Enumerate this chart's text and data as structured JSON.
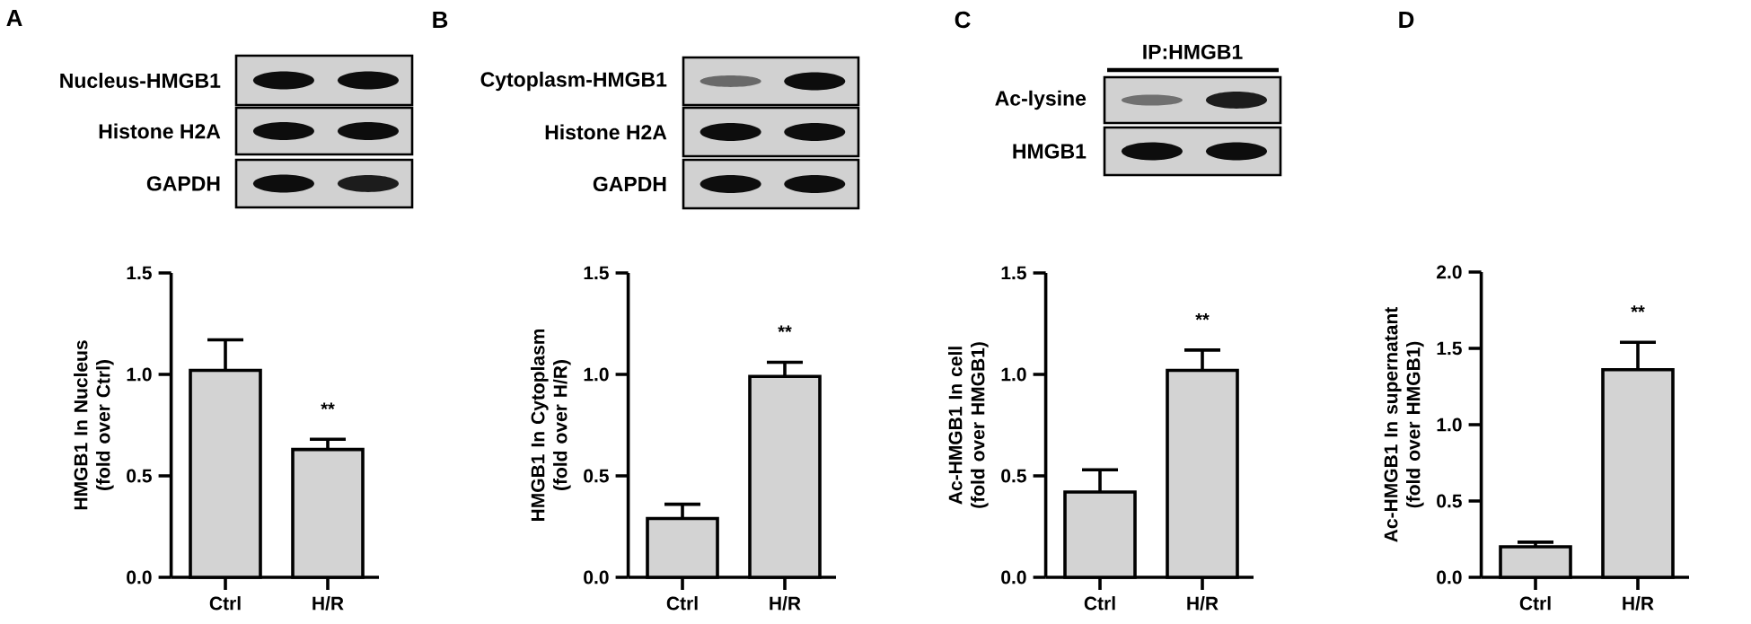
{
  "chart_data": [
    {
      "type": "bar",
      "title": "A",
      "ylabel": "HMGB1 In Nucleus (fold over  Ctrl)",
      "categories": [
        "Ctrl",
        "H/R"
      ],
      "values": [
        1.02,
        0.63
      ],
      "errors": [
        0.15,
        0.05
      ],
      "color": "#d3d3d3",
      "ylim": [
        0,
        1.5
      ],
      "yticks": [
        {
          "value": 0,
          "label": "0.0"
        },
        {
          "value": 0.5,
          "label": "0.5"
        },
        {
          "value": 1,
          "label": "1.0"
        },
        {
          "value": 1.5,
          "label": "1.5"
        }
      ],
      "annotations": [
        "**",
        "Nucleus-HMGB1",
        "Histone H2A",
        "GAPDH"
      ]
    },
    {
      "type": "bar",
      "title": "B",
      "ylabel": "HMGB1 In Cytoplasm (fold over  H/R)",
      "categories": [
        "Ctrl",
        "H/R"
      ],
      "values": [
        0.29,
        0.99
      ],
      "errors": [
        0.07,
        0.07
      ],
      "color": "#d3d3d3",
      "ylim": [
        0,
        1.5
      ],
      "yticks": [
        {
          "value": 0,
          "label": "0.0"
        },
        {
          "value": 0.5,
          "label": "0.5"
        },
        {
          "value": 1,
          "label": "1.0"
        },
        {
          "value": 1.5,
          "label": "1.5"
        }
      ],
      "annotations": [
        "**",
        "Cytoplasm-HMGB1",
        "Histone H2A",
        "GAPDH"
      ]
    },
    {
      "type": "bar",
      "title": "C",
      "ylabel": "Ac-HMGB1 In cell (fold over HMGB1)",
      "categories": [
        "Ctrl",
        "H/R"
      ],
      "values": [
        0.42,
        1.02
      ],
      "errors": [
        0.11,
        0.1
      ],
      "color": "#d3d3d3",
      "ylim": [
        0,
        1.5
      ],
      "yticks": [
        {
          "value": 0,
          "label": "0.0"
        },
        {
          "value": 0.5,
          "label": "0.5"
        },
        {
          "value": 1,
          "label": "1.0"
        },
        {
          "value": 1.5,
          "label": "1.5"
        }
      ],
      "annotations": [
        "**",
        "IP:HMGB1",
        "Ac-lysine",
        "HMGB1"
      ]
    },
    {
      "type": "bar",
      "title": "D",
      "ylabel": "Ac-HMGB1 In supernatant (fold over HMGB1)",
      "categories": [
        "Ctrl",
        "H/R"
      ],
      "values": [
        0.2,
        1.36
      ],
      "errors": [
        0.03,
        0.18
      ],
      "color": "#d3d3d3",
      "ylim": [
        0,
        2
      ],
      "yticks": [
        {
          "value": 0,
          "label": "0.0"
        },
        {
          "value": 0.5,
          "label": "0.5"
        },
        {
          "value": 1,
          "label": "1.0"
        },
        {
          "value": 1.5,
          "label": "1.5"
        },
        {
          "value": 2,
          "label": "2.0"
        }
      ],
      "annotations": [
        "**"
      ]
    }
  ]
}
